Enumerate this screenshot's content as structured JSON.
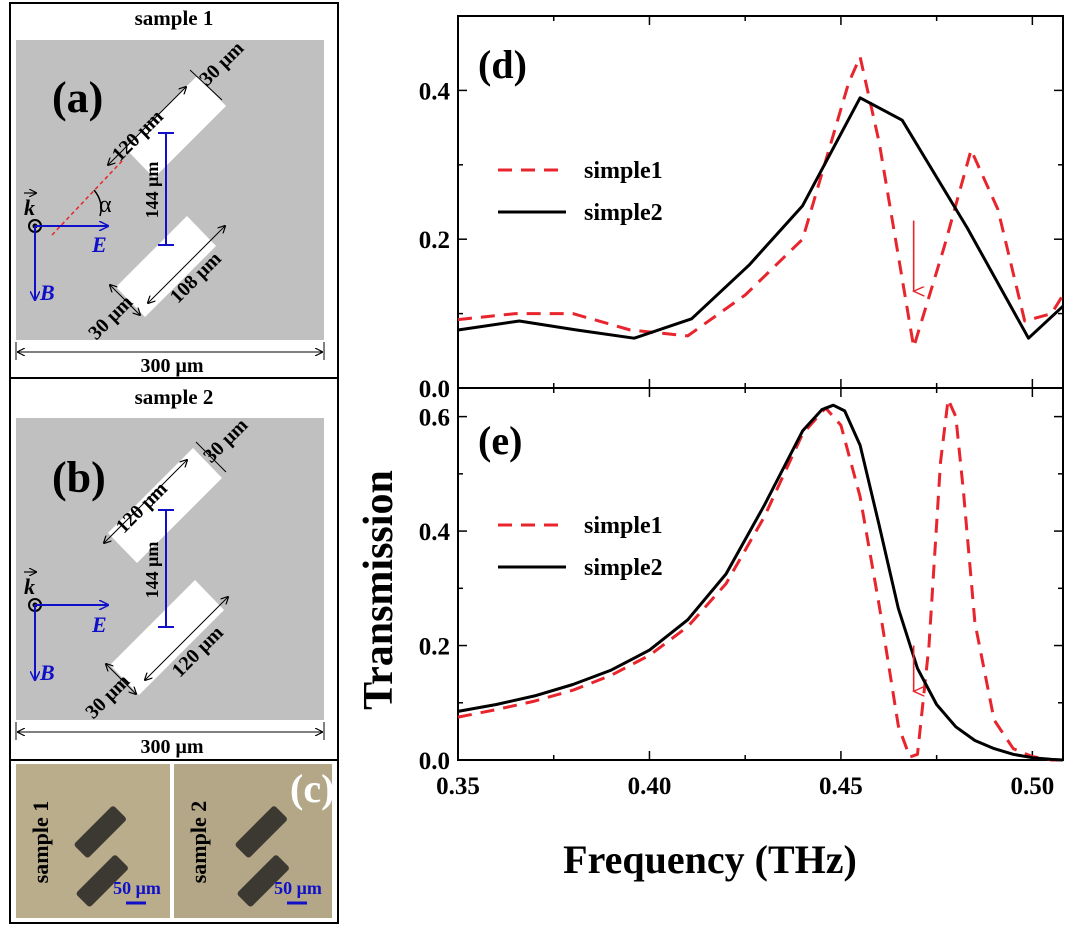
{
  "panel_a": {
    "title": "sample 1",
    "tag": "(a)",
    "dim_top": "30 μm",
    "dim_long": "120 μm",
    "dim_gap": "144 μm",
    "dim_short": "108 μm",
    "dim_bottom": "30 μm",
    "width": "300 μm",
    "k": "k",
    "e": "E",
    "b": "B",
    "alpha": "α"
  },
  "panel_b": {
    "title": "sample 2",
    "tag": "(b)",
    "dim_top": "30 μm",
    "dim_long": "120 μm",
    "dim_gap": "144 μm",
    "dim_lower": "120 μm",
    "dim_bottom": "30 μm",
    "width": "300 μm",
    "k": "k",
    "e": "E",
    "b": "B"
  },
  "panel_c": {
    "tag": "(c)",
    "left_label": "sample 1",
    "right_label": "sample 2",
    "scale_left": "50 μm",
    "scale_right": "50 μm"
  },
  "colors": {
    "sample_bg": "#c0c0c0",
    "resonator": "#ffffff",
    "vector": "#1010c8",
    "series_dash": "#e8242c",
    "series_solid": "#000000",
    "photo_bg": "#b9ad8c"
  },
  "chart_data": [
    {
      "type": "line",
      "panel": "(d)",
      "xlabel": "Frequency (THz)",
      "ylabel": "Transmission",
      "xlim": [
        0.35,
        0.508
      ],
      "ylim": [
        0.0,
        0.5
      ],
      "xticks": [
        "0.35",
        "0.40",
        "0.45",
        "0.50"
      ],
      "yticks": [
        "0.0",
        "0.2",
        "0.4"
      ],
      "legend": "upper-left",
      "series": [
        {
          "name": "simple1",
          "style": "dashed",
          "color": "#e8242c",
          "x": [
            0.35,
            0.365,
            0.38,
            0.395,
            0.41,
            0.425,
            0.44,
            0.452,
            0.455,
            0.46,
            0.469,
            0.477,
            0.484,
            0.491,
            0.498,
            0.505,
            0.508
          ],
          "y": [
            0.092,
            0.1,
            0.1,
            0.078,
            0.07,
            0.125,
            0.2,
            0.41,
            0.445,
            0.33,
            0.055,
            0.19,
            0.32,
            0.24,
            0.09,
            0.1,
            0.125
          ]
        },
        {
          "name": "simple2",
          "style": "solid",
          "color": "#000000",
          "x": [
            0.35,
            0.366,
            0.381,
            0.396,
            0.411,
            0.426,
            0.44,
            0.455,
            0.466,
            0.483,
            0.499,
            0.508
          ],
          "y": [
            0.078,
            0.09,
            0.078,
            0.067,
            0.093,
            0.165,
            0.245,
            0.39,
            0.36,
            0.215,
            0.067,
            0.11
          ]
        }
      ],
      "annotation": "down-arrow at 0.469 THz"
    },
    {
      "type": "line",
      "panel": "(e)",
      "xlabel": "Frequency (THz)",
      "ylabel": "Transmission",
      "xlim": [
        0.35,
        0.508
      ],
      "ylim": [
        0.0,
        0.65
      ],
      "xticks": [
        "0.35",
        "0.40",
        "0.45",
        "0.50"
      ],
      "yticks": [
        "0.0",
        "0.2",
        "0.4",
        "0.6"
      ],
      "legend": "upper-left",
      "series": [
        {
          "name": "simple1",
          "style": "dashed",
          "color": "#e8242c",
          "x": [
            0.35,
            0.36,
            0.37,
            0.38,
            0.39,
            0.4,
            0.41,
            0.42,
            0.43,
            0.44,
            0.446,
            0.45,
            0.455,
            0.46,
            0.465,
            0.468,
            0.47,
            0.473,
            0.476,
            0.478,
            0.48,
            0.482,
            0.485,
            0.49,
            0.495,
            0.5,
            0.505,
            0.508
          ],
          "y": [
            0.075,
            0.088,
            0.103,
            0.122,
            0.148,
            0.183,
            0.233,
            0.308,
            0.425,
            0.57,
            0.615,
            0.585,
            0.46,
            0.27,
            0.06,
            0.005,
            0.01,
            0.2,
            0.52,
            0.63,
            0.6,
            0.47,
            0.24,
            0.07,
            0.02,
            0.006,
            0.0,
            0.0
          ]
        },
        {
          "name": "simple2",
          "style": "solid",
          "color": "#000000",
          "x": [
            0.35,
            0.36,
            0.37,
            0.38,
            0.39,
            0.4,
            0.41,
            0.42,
            0.43,
            0.44,
            0.445,
            0.448,
            0.451,
            0.455,
            0.46,
            0.465,
            0.47,
            0.475,
            0.48,
            0.485,
            0.49,
            0.495,
            0.5,
            0.505,
            0.508
          ],
          "y": [
            0.085,
            0.097,
            0.112,
            0.132,
            0.157,
            0.192,
            0.245,
            0.325,
            0.445,
            0.575,
            0.612,
            0.62,
            0.61,
            0.55,
            0.41,
            0.265,
            0.16,
            0.097,
            0.058,
            0.034,
            0.02,
            0.01,
            0.004,
            0.001,
            0.0
          ]
        }
      ],
      "annotation": "down-arrow at 0.469 THz"
    }
  ]
}
